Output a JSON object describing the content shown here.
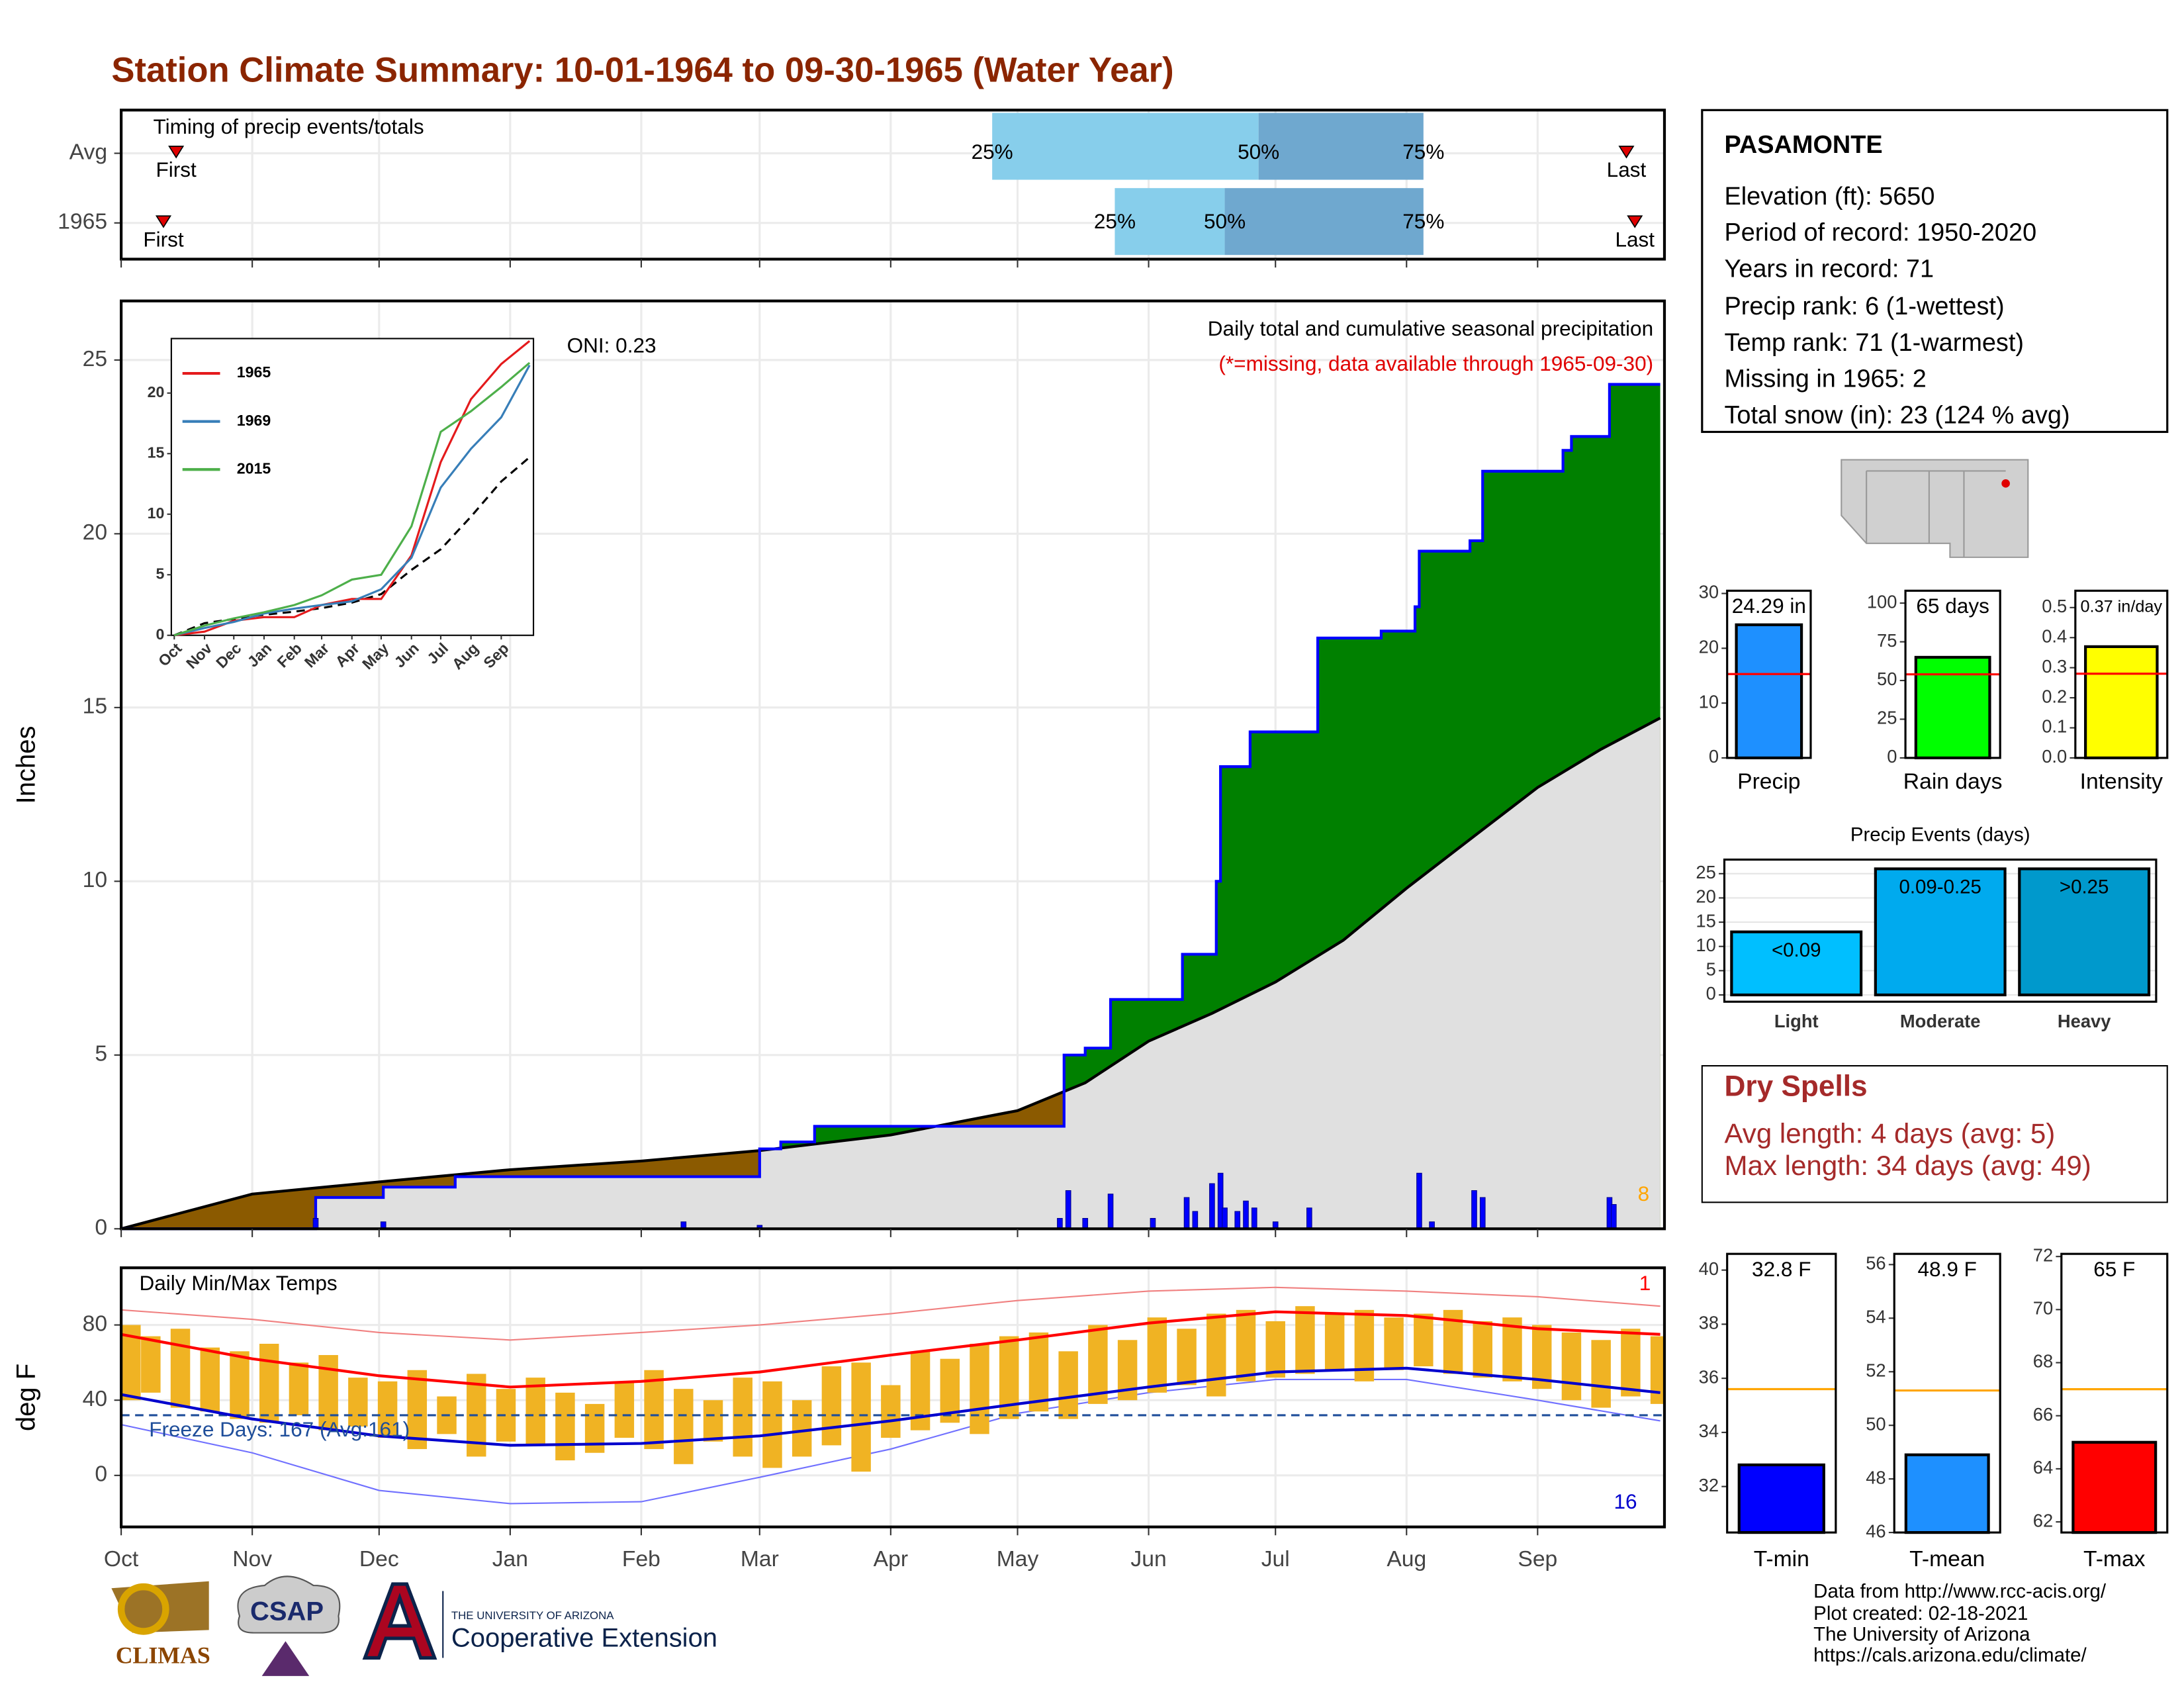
{
  "title": "Station Climate Summary: 10-01-1964 to 09-30-1965 (Water Year)",
  "station": {
    "name": "PASAMONTE",
    "lines": [
      "Elevation (ft): 5650",
      "Period of record: 1950-2020",
      "Years in record: 71",
      "Precip rank: 6 (1-wettest)",
      "Temp rank: 71 (1-warmest)",
      "Missing in 1965: 2",
      "Total snow (in): 23 (124 % avg)"
    ]
  },
  "dry_spells": {
    "title": "Dry Spells",
    "lines": [
      "Avg length: 4 days (avg: 5)",
      "Max length: 34 days (avg: 49)"
    ]
  },
  "footer": {
    "logos": [
      "CLIMAS",
      "CSAP"
    ],
    "university": "THE UNIVERSITY OF ARIZONA",
    "extension": "Cooperative Extension",
    "credits": [
      "Data from http://www.rcc-acis.org/",
      "Plot created: 02-18-2021",
      "The University of Arizona",
      "https://cals.arizona.edu/climate/"
    ]
  },
  "chart_data": [
    {
      "type": "timing",
      "title": "Timing of precip events/totals",
      "xlim": [
        0,
        365
      ],
      "quantile_labels": [
        "25%",
        "50%",
        "75%"
      ],
      "first_label": "First",
      "last_label": "Last",
      "rows": [
        {
          "name": "Avg",
          "first": 13,
          "q25": 206,
          "q50": 269,
          "q75": 308,
          "last": 356
        },
        {
          "name": "1965",
          "first": 10,
          "q25": 235,
          "q50": 261,
          "q75": 308,
          "last": 358
        }
      ],
      "colors": {
        "low": "#87ceeb",
        "high": "#6fa8cf",
        "marker": "#e00000"
      }
    },
    {
      "type": "area",
      "ylabel": "Inches",
      "title": "Daily total and cumulative seasonal precipitation",
      "note": "(*=missing, data available through 1965-09-30)",
      "oni": "ONI: 0.23",
      "marker_count": 8,
      "xlim": [
        0,
        365
      ],
      "ylim": [
        0,
        26.7
      ],
      "yticks": [
        0,
        5,
        10,
        15,
        20,
        25
      ],
      "grid": true,
      "observed": {
        "x": [
          0,
          46,
          46,
          62,
          62,
          79,
          79,
          151,
          151,
          156,
          156,
          164,
          164,
          223,
          223,
          228,
          228,
          234,
          234,
          251,
          251,
          259,
          259,
          260,
          260,
          267,
          267,
          283,
          283,
          298,
          298,
          306,
          306,
          307,
          307,
          319,
          319,
          322,
          322,
          341,
          341,
          343,
          343,
          352,
          352,
          364
        ],
        "values": [
          0,
          0,
          0.9,
          0.9,
          1.2,
          1.2,
          1.5,
          1.5,
          2.3,
          2.3,
          2.5,
          2.5,
          2.95,
          2.95,
          5.0,
          5.0,
          5.2,
          5.2,
          6.6,
          6.6,
          7.9,
          7.9,
          10.0,
          10.0,
          13.3,
          13.3,
          14.3,
          14.3,
          17.0,
          17.0,
          17.2,
          17.2,
          17.9,
          17.9,
          19.5,
          19.5,
          19.8,
          19.8,
          21.8,
          21.8,
          22.4,
          22.4,
          22.8,
          22.8,
          24.3,
          24.3
        ]
      },
      "average": {
        "x": [
          0,
          31,
          61,
          92,
          123,
          151,
          182,
          212,
          228,
          243,
          258,
          273,
          289,
          304,
          320,
          335,
          350,
          364
        ],
        "values": [
          0,
          1.0,
          1.35,
          1.7,
          1.95,
          2.25,
          2.7,
          3.4,
          4.2,
          5.4,
          6.2,
          7.1,
          8.3,
          9.8,
          11.3,
          12.7,
          13.8,
          14.7
        ]
      },
      "daily": {
        "x": [
          46,
          62,
          133,
          151,
          222,
          224,
          228,
          234,
          244,
          252,
          254,
          258,
          260,
          261,
          264,
          266,
          268,
          273,
          281,
          307,
          310,
          320,
          322,
          352,
          353
        ],
        "values": [
          0.3,
          0.2,
          0.2,
          0.1,
          0.3,
          1.1,
          0.3,
          1.0,
          0.3,
          0.9,
          0.5,
          1.3,
          1.6,
          0.6,
          0.5,
          0.8,
          0.6,
          0.2,
          0.6,
          1.6,
          0.2,
          1.1,
          0.9,
          0.9,
          0.7
        ]
      },
      "colors": {
        "above": "#008000",
        "below": "#8b5a00",
        "base": "#e0e0e0",
        "observed": "#0000ff",
        "average": "#000000",
        "daily": "#0000ff",
        "marker": "#ffa500",
        "note": "#e00000"
      }
    },
    {
      "type": "line",
      "xlim": [
        -3,
        368
      ],
      "ylim": [
        0,
        24.5
      ],
      "yticks": [
        0,
        5,
        10,
        15,
        20
      ],
      "xticks": [
        {
          "value": 0,
          "label": "Oct"
        },
        {
          "value": 31,
          "label": "Nov"
        },
        {
          "value": 61,
          "label": "Dec"
        },
        {
          "value": 92,
          "label": "Jan"
        },
        {
          "value": 123,
          "label": "Feb"
        },
        {
          "value": 151,
          "label": "Mar"
        },
        {
          "value": 182,
          "label": "Apr"
        },
        {
          "value": 212,
          "label": "May"
        },
        {
          "value": 243,
          "label": "Jun"
        },
        {
          "value": 273,
          "label": "Jul"
        },
        {
          "value": 304,
          "label": "Aug"
        },
        {
          "value": 335,
          "label": "Sep"
        }
      ],
      "x": [
        0,
        31,
        61,
        92,
        123,
        151,
        182,
        212,
        243,
        273,
        304,
        335,
        364
      ],
      "series": [
        {
          "name": "1965",
          "color": "#e41a1c",
          "values": [
            0,
            0.3,
            1.2,
            1.5,
            1.5,
            2.5,
            3.0,
            3.0,
            6.6,
            14.3,
            19.5,
            22.4,
            24.3
          ]
        },
        {
          "name": "1969",
          "color": "#377eb8",
          "values": [
            0,
            0.6,
            1.1,
            1.8,
            2.2,
            2.5,
            2.8,
            3.8,
            6.4,
            12.2,
            15.4,
            18.0,
            22.3
          ]
        },
        {
          "name": "2015",
          "color": "#4daf4a",
          "values": [
            0,
            0.8,
            1.4,
            1.9,
            2.5,
            3.3,
            4.6,
            5.0,
            9.0,
            16.8,
            18.5,
            20.5,
            22.5
          ]
        }
      ],
      "average": {
        "color": "#000000",
        "values": [
          0,
          1.0,
          1.35,
          1.7,
          1.95,
          2.25,
          2.7,
          3.4,
          5.4,
          7.1,
          9.8,
          12.7,
          14.7
        ]
      }
    },
    {
      "type": "range",
      "title": "Daily Min/Max Temps",
      "ylabel": "deg F",
      "annotation": "Freeze Days: 167 (Avg:161)",
      "freeze_line": 32,
      "max_record_count": 1,
      "min_record_count": 16,
      "xlim": [
        0,
        365
      ],
      "ylim": [
        -27.4,
        110.4
      ],
      "yticks": [
        0,
        40,
        80
      ],
      "grid": true,
      "xticks": [
        {
          "value": 0,
          "label": "Oct"
        },
        {
          "value": 31,
          "label": "Nov"
        },
        {
          "value": 61,
          "label": "Dec"
        },
        {
          "value": 92,
          "label": "Jan"
        },
        {
          "value": 123,
          "label": "Feb"
        },
        {
          "value": 151,
          "label": "Mar"
        },
        {
          "value": 182,
          "label": "Apr"
        },
        {
          "value": 212,
          "label": "May"
        },
        {
          "value": 243,
          "label": "Jun"
        },
        {
          "value": 273,
          "label": "Jul"
        },
        {
          "value": 304,
          "label": "Aug"
        },
        {
          "value": 335,
          "label": "Sep"
        }
      ],
      "weekly": {
        "x": [
          0,
          7,
          14,
          21,
          28,
          35,
          42,
          49,
          56,
          63,
          70,
          77,
          84,
          91,
          98,
          105,
          112,
          119,
          126,
          133,
          140,
          147,
          154,
          161,
          168,
          175,
          182,
          189,
          196,
          203,
          210,
          217,
          224,
          231,
          238,
          245,
          252,
          259,
          266,
          273,
          280,
          287,
          294,
          301,
          308,
          315,
          322,
          329,
          336,
          343,
          350,
          357,
          364
        ],
        "max": [
          80,
          74,
          78,
          68,
          66,
          70,
          60,
          64,
          52,
          50,
          56,
          42,
          54,
          46,
          52,
          44,
          38,
          50,
          56,
          46,
          40,
          52,
          50,
          40,
          58,
          60,
          48,
          66,
          62,
          70,
          74,
          76,
          66,
          80,
          72,
          84,
          78,
          86,
          88,
          82,
          90,
          86,
          88,
          84,
          86,
          88,
          82,
          84,
          80,
          76,
          72,
          78,
          74
        ],
        "min": [
          40,
          44,
          36,
          34,
          30,
          28,
          32,
          24,
          26,
          20,
          14,
          22,
          10,
          18,
          16,
          8,
          12,
          20,
          14,
          6,
          18,
          10,
          4,
          10,
          16,
          2,
          20,
          24,
          28,
          22,
          30,
          34,
          30,
          38,
          40,
          44,
          48,
          42,
          50,
          52,
          54,
          56,
          50,
          56,
          58,
          54,
          52,
          50,
          46,
          40,
          36,
          42,
          38
        ]
      },
      "monthly_x": [
        0,
        31,
        61,
        92,
        123,
        151,
        182,
        212,
        243,
        273,
        304,
        335,
        364
      ],
      "avg_max": [
        75,
        62,
        53,
        47,
        50,
        55,
        64,
        72,
        81,
        87,
        85,
        78,
        75
      ],
      "avg_min": [
        43,
        30,
        21,
        16,
        17,
        21,
        29,
        38,
        47,
        55,
        57,
        51,
        44
      ],
      "record_max": [
        88,
        83,
        76,
        72,
        76,
        80,
        86,
        93,
        98,
        100,
        98,
        95,
        90
      ],
      "record_min": [
        27,
        12,
        -8,
        -15,
        -14,
        -1,
        14,
        33,
        44,
        51,
        51,
        40,
        29
      ],
      "colors": {
        "bars": "#f0b323",
        "avg_max": "#ff0000",
        "avg_min": "#0000cd",
        "record_max": "#f08080",
        "record_min": "#7070ff",
        "freeze": "#1f4e9a"
      }
    },
    {
      "type": "bar",
      "categories": [
        "Precip"
      ],
      "values": [
        24.29
      ],
      "value_labels": [
        "24.29 in"
      ],
      "average": 15.3,
      "average_color": "#ff0000",
      "color": "#1e90ff",
      "ylim": [
        0,
        30.5
      ],
      "yticks": [
        0,
        10,
        20,
        30
      ]
    },
    {
      "type": "bar",
      "categories": [
        "Rain days"
      ],
      "values": [
        65
      ],
      "value_labels": [
        "65 days"
      ],
      "average": 54,
      "average_color": "#ff0000",
      "color": "#00ff00",
      "ylim": [
        0,
        108
      ],
      "yticks": [
        0,
        25,
        50,
        75,
        100
      ]
    },
    {
      "type": "bar",
      "categories": [
        "Intensity"
      ],
      "values": [
        0.37
      ],
      "value_labels": [
        "0.37 in/day"
      ],
      "average": 0.28,
      "average_color": "#ff0000",
      "color": "#ffff00",
      "ylim": [
        0,
        0.556
      ],
      "yticks": [
        {
          "value": 0,
          "label": "0.0"
        },
        0.1,
        0.2,
        0.3,
        0.4,
        0.5
      ]
    },
    {
      "type": "bar",
      "title": "Precip Events (days)",
      "categories": [
        "Light",
        "Moderate",
        "Heavy"
      ],
      "values": [
        13,
        26,
        26
      ],
      "value_labels": [
        "<0.09",
        "0.09-0.25",
        ">0.25"
      ],
      "colors": [
        "#00bfff",
        "#00aaee",
        "#0099cc"
      ],
      "ylim": [
        -1.4,
        27.9
      ],
      "yticks": [
        0,
        5,
        10,
        15,
        20,
        25
      ],
      "grid": true
    },
    {
      "type": "bar",
      "categories": [
        "T-min"
      ],
      "values": [
        32.8
      ],
      "value_labels": [
        "32.8 F"
      ],
      "average": 35.6,
      "average_color": "#ffa500",
      "color": "#0000ff",
      "ylim": [
        30.3,
        40.6
      ],
      "yticks": [
        32,
        34,
        36,
        38,
        40
      ]
    },
    {
      "type": "bar",
      "categories": [
        "T-mean"
      ],
      "values": [
        48.9
      ],
      "value_labels": [
        "48.9 F"
      ],
      "average": 51.3,
      "average_color": "#ffa500",
      "color": "#1e90ff",
      "ylim": [
        46,
        56.4
      ],
      "yticks": [
        46,
        48,
        50,
        52,
        54,
        56
      ]
    },
    {
      "type": "bar",
      "categories": [
        "T-max"
      ],
      "values": [
        65
      ],
      "value_labels": [
        "65 F"
      ],
      "average": 67.0,
      "average_color": "#ffa500",
      "color": "#ff0000",
      "ylim": [
        61.6,
        72.1
      ],
      "yticks": [
        62,
        64,
        66,
        68,
        70,
        72
      ]
    }
  ]
}
